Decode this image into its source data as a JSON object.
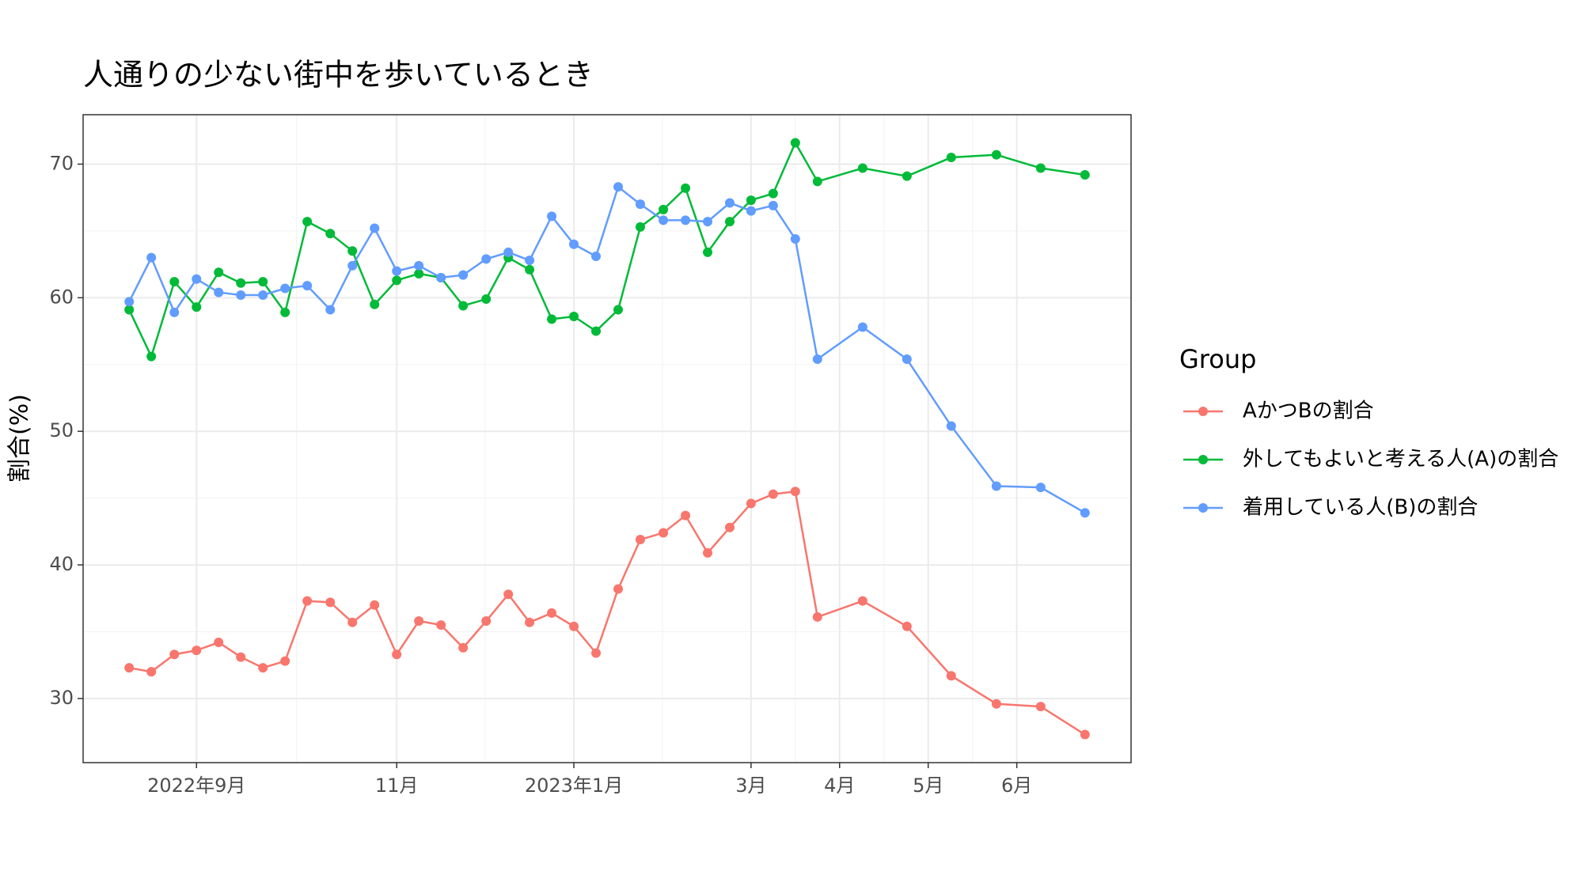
{
  "chart_data": {
    "type": "line",
    "title": "人通りの少ない街中を歩いているとき",
    "ylabel": "割合(%)",
    "legend_title": "Group",
    "legend": "right",
    "grid": true,
    "x": [
      7.98,
      8.23,
      8.49,
      8.74,
      8.99,
      9.24,
      9.49,
      9.74,
      9.99,
      10.25,
      10.5,
      10.75,
      11,
      11.25,
      11.5,
      11.75,
      12.01,
      12.26,
      12.5,
      12.75,
      13,
      13.25,
      13.5,
      13.75,
      14.01,
      14.26,
      14.51,
      14.76,
      15,
      15.25,
      15.5,
      15.75,
      16.26,
      16.76,
      17.26,
      17.77,
      18.27,
      18.77
    ],
    "xlim": [
      7.46,
      19.29
    ],
    "xticks": [
      {
        "value": 8.74,
        "label": "2022年9月"
      },
      {
        "value": 11,
        "label": "11月"
      },
      {
        "value": 13,
        "label": "2023年1月"
      },
      {
        "value": 15,
        "label": "3月"
      },
      {
        "value": 16,
        "label": "4月"
      },
      {
        "value": 17,
        "label": "5月"
      },
      {
        "value": 18,
        "label": "6月"
      }
    ],
    "ylim": [
      25.2,
      73.7
    ],
    "yticks": [
      30,
      40,
      50,
      60,
      70
    ],
    "series": [
      {
        "name": "AかつBの割合",
        "color": "#F8766D",
        "values": [
          32.3,
          32.0,
          33.3,
          33.6,
          34.2,
          33.1,
          32.3,
          32.8,
          37.3,
          37.2,
          35.7,
          37.0,
          33.3,
          35.8,
          35.5,
          33.8,
          35.8,
          37.8,
          35.7,
          36.4,
          35.4,
          33.4,
          38.2,
          41.9,
          42.4,
          43.7,
          40.9,
          42.8,
          44.6,
          45.3,
          45.5,
          36.1,
          37.3,
          35.4,
          31.7,
          29.6,
          29.4,
          27.3
        ]
      },
      {
        "name": "外してもよいと考える人(A)の割合",
        "color": "#00BA38",
        "values": [
          59.1,
          55.6,
          61.2,
          59.3,
          61.9,
          61.1,
          61.2,
          58.9,
          65.7,
          64.8,
          63.5,
          59.5,
          61.3,
          61.8,
          61.5,
          59.4,
          59.9,
          63.0,
          62.1,
          58.4,
          58.6,
          57.5,
          59.1,
          65.3,
          66.6,
          68.2,
          63.4,
          65.7,
          67.3,
          67.8,
          71.6,
          68.7,
          69.7,
          69.1,
          70.5,
          70.7,
          69.7,
          69.2
        ]
      },
      {
        "name": "着用している人(B)の割合",
        "color": "#619CFF",
        "values": [
          59.7,
          63.0,
          58.9,
          61.4,
          60.4,
          60.2,
          60.2,
          60.7,
          60.9,
          59.1,
          62.4,
          65.2,
          62.0,
          62.4,
          61.5,
          61.7,
          62.9,
          63.4,
          62.8,
          66.1,
          64.0,
          63.1,
          68.3,
          67.0,
          65.8,
          65.8,
          65.7,
          67.1,
          66.5,
          66.9,
          64.4,
          55.4,
          57.8,
          55.4,
          50.4,
          45.9,
          45.8,
          43.9
        ]
      }
    ]
  }
}
